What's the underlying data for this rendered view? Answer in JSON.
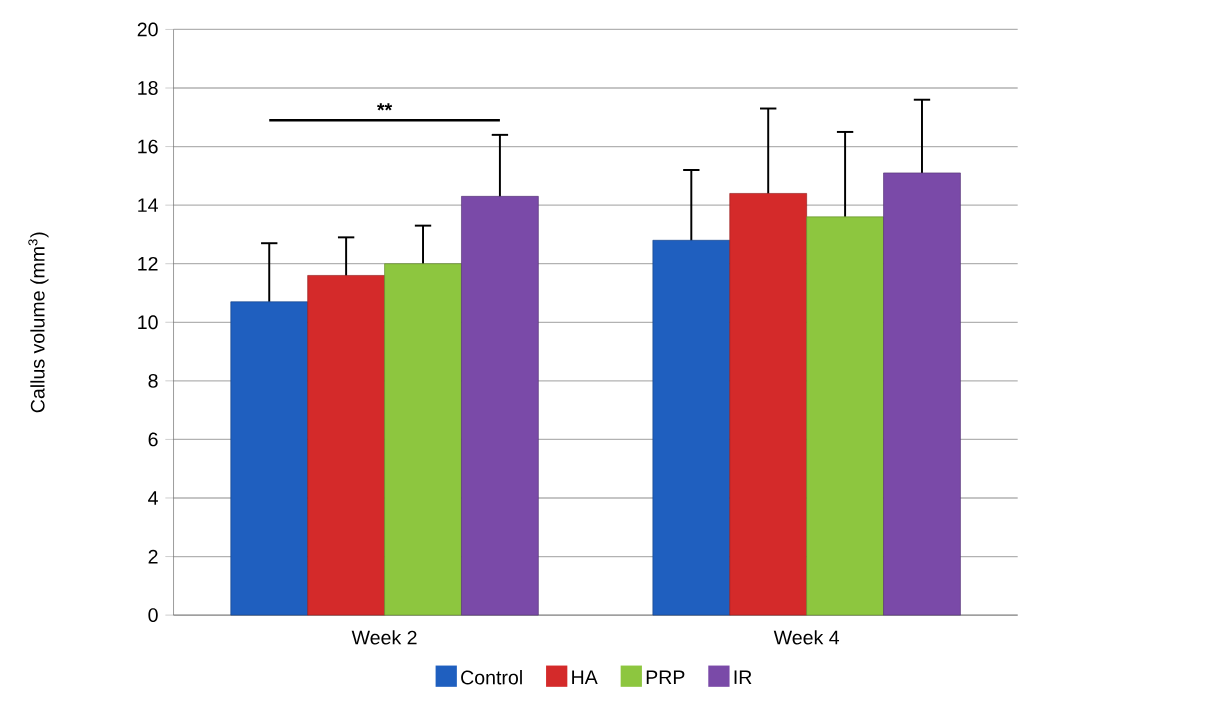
{
  "chart_data": {
    "type": "bar",
    "ylabel": "Callus volume (mm$^{3}$)",
    "categories": [
      "Week 2",
      "Week 4"
    ],
    "series": [
      {
        "name": "Control",
        "color": "#1f5fbf",
        "values": [
          10.7,
          12.8
        ],
        "errors": [
          2.0,
          2.4
        ]
      },
      {
        "name": "HA",
        "color": "#d42a2a",
        "values": [
          11.6,
          14.4
        ],
        "errors": [
          1.3,
          2.9
        ]
      },
      {
        "name": "PRP",
        "color": "#8dc63f",
        "values": [
          12.0,
          13.6
        ],
        "errors": [
          1.3,
          2.9
        ]
      },
      {
        "name": "IR",
        "color": "#7a4aa8",
        "values": [
          14.3,
          15.1
        ],
        "errors": [
          2.1,
          2.5
        ]
      }
    ],
    "ylim": [
      0,
      20
    ],
    "yticks": [
      0,
      2,
      4,
      6,
      8,
      10,
      12,
      14,
      16,
      18,
      20
    ],
    "grid": "y",
    "legend": "bottom",
    "annotations": [
      "**"
    ]
  }
}
